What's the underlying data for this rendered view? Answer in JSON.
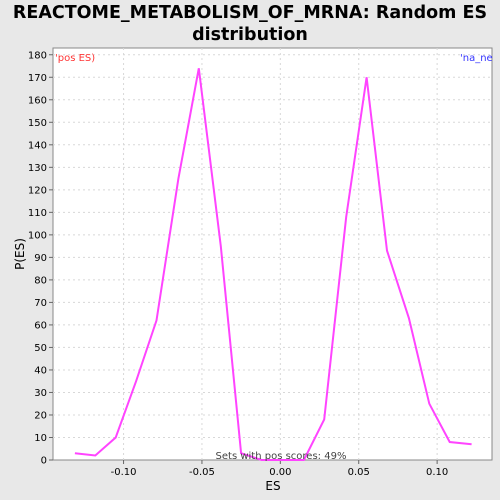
{
  "chart_data": {
    "type": "line",
    "title": "REACTOME_METABOLISM_OF_MRNA: Random ES distribution",
    "xlabel": "ES",
    "ylabel": "P(ES)",
    "xlim": [
      -0.145,
      0.135
    ],
    "ylim": [
      0,
      183
    ],
    "x_ticks": [
      "-0.10",
      "-0.05",
      "0.00",
      "0.05",
      "0.10"
    ],
    "x_tick_values": [
      -0.1,
      -0.05,
      0.0,
      0.05,
      0.1
    ],
    "y_ticks": [
      0,
      10,
      20,
      30,
      40,
      50,
      60,
      70,
      80,
      90,
      100,
      110,
      120,
      130,
      140,
      150,
      160,
      170,
      180
    ],
    "grid": true,
    "series": [
      {
        "name": "",
        "color": "#ff44ff",
        "x": [
          -0.131,
          -0.118,
          -0.105,
          -0.092,
          -0.079,
          -0.065,
          -0.052,
          -0.038,
          -0.025,
          -0.012,
          0.002,
          0.015,
          0.028,
          0.042,
          0.055,
          0.068,
          0.082,
          0.095,
          0.108,
          0.122
        ],
        "y": [
          3,
          2,
          10,
          35,
          62,
          125,
          174,
          95,
          3,
          0,
          0,
          0,
          18,
          108,
          170,
          93,
          63,
          25,
          8,
          7
        ]
      }
    ],
    "legend_left": "'pos ES)",
    "legend_left_color": "#ff3333",
    "legend_right": "'na_ne",
    "legend_right_color": "#3333ff",
    "annotation": "Sets with pos scores: 49%"
  }
}
